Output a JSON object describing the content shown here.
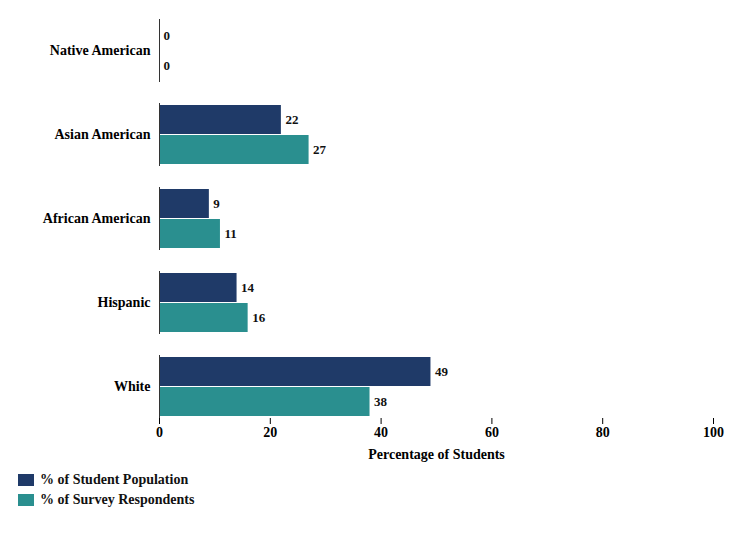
{
  "chart_data": {
    "type": "bar",
    "orientation": "horizontal",
    "categories": [
      "Native American",
      "Asian American",
      "African American",
      "Hispanic",
      "White"
    ],
    "series": [
      {
        "name": "% of Student Population",
        "color": "#1f3a68",
        "values": [
          0,
          22,
          9,
          14,
          49
        ]
      },
      {
        "name": "% of Survey Respondents",
        "color": "#2a8f8f",
        "values": [
          0,
          27,
          11,
          16,
          38
        ]
      }
    ],
    "x_label": "Percentage of Students",
    "xlim": [
      0,
      100
    ],
    "xticks": [
      0,
      20,
      40,
      60,
      80,
      100
    ],
    "data_labels": true,
    "legend": "bottom-left",
    "grid": false
  }
}
